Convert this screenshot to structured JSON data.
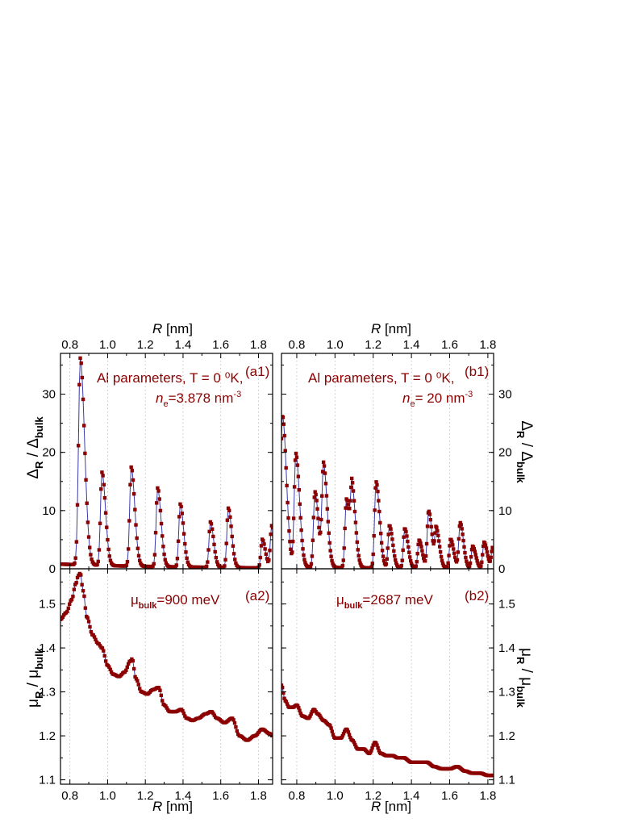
{
  "colors": {
    "marker": "#8b0000",
    "line": "#3a3aa8",
    "annotation": "#8b0000",
    "grid": "#b8b8b8",
    "axis": "#000000"
  },
  "chart_data": [
    {
      "panel": "(a1)",
      "type": "line",
      "xlabel": "R [nm]",
      "xlabel_top": "R [nm]",
      "ylabel": "ΔR / Δbulk",
      "ylabel_side": "left",
      "xlim": [
        0.75,
        1.875
      ],
      "ylim": [
        0,
        37
      ],
      "xticks": [
        0.8,
        1.0,
        1.2,
        1.4,
        1.6,
        1.8
      ],
      "xtick_labels": [
        "0.8",
        "1.0",
        "1.2",
        "1.4",
        "1.6",
        "1.8"
      ],
      "yticks": [
        0,
        10,
        20,
        30
      ],
      "ytick_labels": [
        "0",
        "10",
        "20",
        "30"
      ],
      "grid": "vertical dotted",
      "annotations": {
        "label": "(a1)",
        "line1": "Al parameters, T = 0 ⁰K,",
        "line2_prefix": "n",
        "line2_sub": "e",
        "line2_value": "=3.878 nm",
        "line2_sup": "-3"
      },
      "peaks": [
        {
          "x": 0.855,
          "h": 35.5
        },
        {
          "x": 0.97,
          "h": 16.0
        },
        {
          "x": 1.125,
          "h": 17.0
        },
        {
          "x": 1.265,
          "h": 13.5
        },
        {
          "x": 1.385,
          "h": 10.8
        },
        {
          "x": 1.545,
          "h": 7.8
        },
        {
          "x": 1.64,
          "h": 10.2
        },
        {
          "x": 1.82,
          "h": 4.9
        },
        {
          "x": 1.87,
          "h": 7.2
        }
      ],
      "baseline": 0.8,
      "sample_step": 0.005
    },
    {
      "panel": "(b1)",
      "type": "line",
      "xlabel_top": "R [nm]",
      "ylabel": "ΔR / Δbulk",
      "ylabel_side": "right",
      "xlim": [
        0.72,
        1.83
      ],
      "ylim": [
        0,
        37
      ],
      "xticks": [
        0.8,
        1.0,
        1.2,
        1.4,
        1.6,
        1.8
      ],
      "xtick_labels": [
        "0.8",
        "1.0",
        "1.2",
        "1.4",
        "1.6",
        "1.8"
      ],
      "yticks": [
        0,
        10,
        20,
        30
      ],
      "ytick_labels": [
        "0",
        "10",
        "20",
        "30"
      ],
      "grid": "vertical dotted",
      "annotations": {
        "label": "(b1)",
        "line1": "Al parameters, T = 0 ⁰K,",
        "line2_prefix": "n",
        "line2_sub": "e",
        "line2_value": "= 20 nm",
        "line2_sup": "-3"
      },
      "peaks": [
        {
          "x": 0.725,
          "h": 26.0
        },
        {
          "x": 0.795,
          "h": 19.5
        },
        {
          "x": 0.895,
          "h": 13.0
        },
        {
          "x": 0.94,
          "h": 17.5
        },
        {
          "x": 1.06,
          "h": 11.8
        },
        {
          "x": 1.09,
          "h": 12.3
        },
        {
          "x": 1.215,
          "h": 14.8
        },
        {
          "x": 1.285,
          "h": 7.3
        },
        {
          "x": 1.365,
          "h": 6.8
        },
        {
          "x": 1.44,
          "h": 4.8
        },
        {
          "x": 1.49,
          "h": 9.8
        },
        {
          "x": 1.53,
          "h": 6.5
        },
        {
          "x": 1.605,
          "h": 5.0
        },
        {
          "x": 1.655,
          "h": 7.8
        },
        {
          "x": 1.72,
          "h": 3.8
        },
        {
          "x": 1.78,
          "h": 4.5
        },
        {
          "x": 1.825,
          "h": 3.5
        }
      ],
      "baseline": 0.3,
      "sample_step": 0.004
    },
    {
      "panel": "(a2)",
      "type": "line",
      "xlabel": "R [nm]",
      "ylabel": "μR / μbulk",
      "ylabel_side": "left",
      "xlim": [
        0.75,
        1.875
      ],
      "ylim": [
        1.09,
        1.58
      ],
      "xticks": [
        0.8,
        1.0,
        1.2,
        1.4,
        1.6,
        1.8
      ],
      "xtick_labels": [
        "0.8",
        "1.0",
        "1.2",
        "1.4",
        "1.6",
        "1.8"
      ],
      "yticks": [
        1.1,
        1.2,
        1.3,
        1.4,
        1.5
      ],
      "ytick_labels": [
        "1.1",
        "1.2",
        "1.3",
        "1.4",
        "1.5"
      ],
      "grid": "vertical dotted",
      "annotations": {
        "label": "(a2)",
        "mu_prefix": "μ",
        "mu_sub": "bulk",
        "mu_value": "=900 meV"
      },
      "x": [
        0.75,
        0.78,
        0.81,
        0.83,
        0.845,
        0.855,
        0.87,
        0.89,
        0.92,
        0.95,
        0.97,
        1.0,
        1.03,
        1.06,
        1.09,
        1.12,
        1.13,
        1.15,
        1.18,
        1.21,
        1.24,
        1.27,
        1.3,
        1.33,
        1.36,
        1.39,
        1.42,
        1.45,
        1.48,
        1.52,
        1.55,
        1.58,
        1.62,
        1.66,
        1.7,
        1.74,
        1.78,
        1.82,
        1.86,
        1.875
      ],
      "y": [
        1.465,
        1.48,
        1.51,
        1.545,
        1.565,
        1.57,
        1.53,
        1.47,
        1.43,
        1.41,
        1.4,
        1.36,
        1.34,
        1.335,
        1.345,
        1.37,
        1.375,
        1.33,
        1.3,
        1.295,
        1.305,
        1.31,
        1.27,
        1.255,
        1.255,
        1.26,
        1.24,
        1.235,
        1.24,
        1.25,
        1.255,
        1.24,
        1.23,
        1.24,
        1.2,
        1.19,
        1.2,
        1.215,
        1.205,
        1.2
      ],
      "sample_step": 0.006
    },
    {
      "panel": "(b2)",
      "type": "line",
      "xlabel": "R [nm]",
      "ylabel": "μR / μbulk",
      "ylabel_side": "right",
      "xlim": [
        0.72,
        1.83
      ],
      "ylim": [
        1.09,
        1.58
      ],
      "xticks": [
        0.8,
        1.0,
        1.2,
        1.4,
        1.6,
        1.8
      ],
      "xtick_labels": [
        "0.8",
        "1.0",
        "1.2",
        "1.4",
        "1.6",
        "1.8"
      ],
      "yticks": [
        1.1,
        1.2,
        1.3,
        1.4,
        1.5
      ],
      "ytick_labels": [
        "1.1",
        "1.2",
        "1.3",
        "1.4",
        "1.5"
      ],
      "grid": "vertical dotted",
      "annotations": {
        "label": "(b2)",
        "mu_prefix": "μ",
        "mu_sub": "bulk",
        "mu_value": "=2687 meV"
      },
      "x": [
        0.72,
        0.74,
        0.76,
        0.78,
        0.8,
        0.83,
        0.86,
        0.89,
        0.91,
        0.94,
        0.97,
        1.0,
        1.03,
        1.06,
        1.09,
        1.12,
        1.15,
        1.18,
        1.21,
        1.24,
        1.27,
        1.3,
        1.33,
        1.36,
        1.4,
        1.44,
        1.48,
        1.52,
        1.56,
        1.6,
        1.64,
        1.68,
        1.72,
        1.76,
        1.8,
        1.83
      ],
      "y": [
        1.315,
        1.28,
        1.265,
        1.265,
        1.27,
        1.245,
        1.24,
        1.26,
        1.25,
        1.235,
        1.225,
        1.195,
        1.195,
        1.215,
        1.19,
        1.17,
        1.17,
        1.16,
        1.185,
        1.16,
        1.155,
        1.155,
        1.15,
        1.15,
        1.14,
        1.14,
        1.14,
        1.13,
        1.125,
        1.125,
        1.13,
        1.12,
        1.115,
        1.115,
        1.11,
        1.11
      ],
      "sample_step": 0.005
    }
  ]
}
